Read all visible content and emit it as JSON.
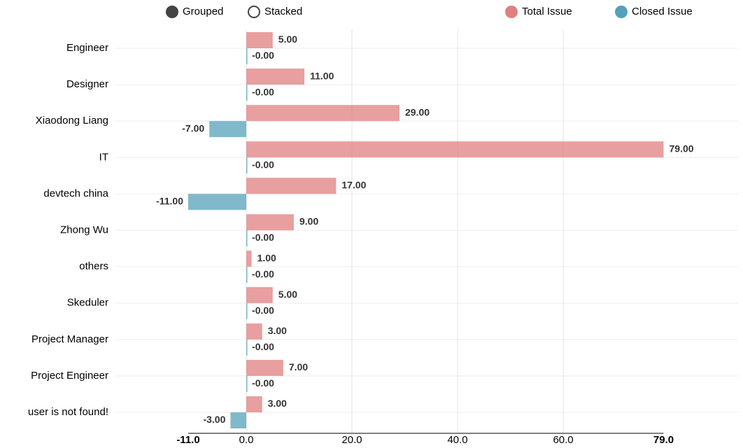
{
  "chart_data": {
    "type": "bar",
    "orientation": "horizontal",
    "controls": [
      "Grouped",
      "Stacked"
    ],
    "categories": [
      "Engineer",
      "Designer",
      "Xiaodong Liang",
      "IT",
      "devtech china",
      "Zhong Wu",
      "others",
      "Skeduler",
      "Project Manager",
      "Project Engineer",
      "user is not found!"
    ],
    "series": [
      {
        "name": "Total Issue",
        "color": "#e07f7f",
        "values": [
          5,
          11,
          29,
          79,
          17,
          9,
          1,
          5,
          3,
          7,
          3
        ],
        "value_labels": [
          "5.00",
          "11.00",
          "29.00",
          "79.00",
          "17.00",
          "9.00",
          "1.00",
          "5.00",
          "3.00",
          "7.00",
          "3.00"
        ]
      },
      {
        "name": "Closed Issue",
        "color": "#55a1ba",
        "values": [
          0,
          0,
          -7,
          0,
          -11,
          0,
          0,
          0,
          0,
          0,
          -3
        ],
        "value_labels": [
          "-0.00",
          "-0.00",
          "-7.00",
          "-0.00",
          "-11.00",
          "-0.00",
          "-0.00",
          "-0.00",
          "-0.00",
          "-0.00",
          "-3.00"
        ]
      }
    ],
    "xlim": [
      -11,
      79
    ],
    "xticks": [
      {
        "value": -11,
        "label": "-11.0"
      },
      {
        "value": 0,
        "label": "0.0"
      },
      {
        "value": 20,
        "label": "20.0"
      },
      {
        "value": 40,
        "label": "40.0"
      },
      {
        "value": 60,
        "label": "60.0"
      },
      {
        "value": 79,
        "label": "79.0"
      }
    ],
    "grid": true
  }
}
